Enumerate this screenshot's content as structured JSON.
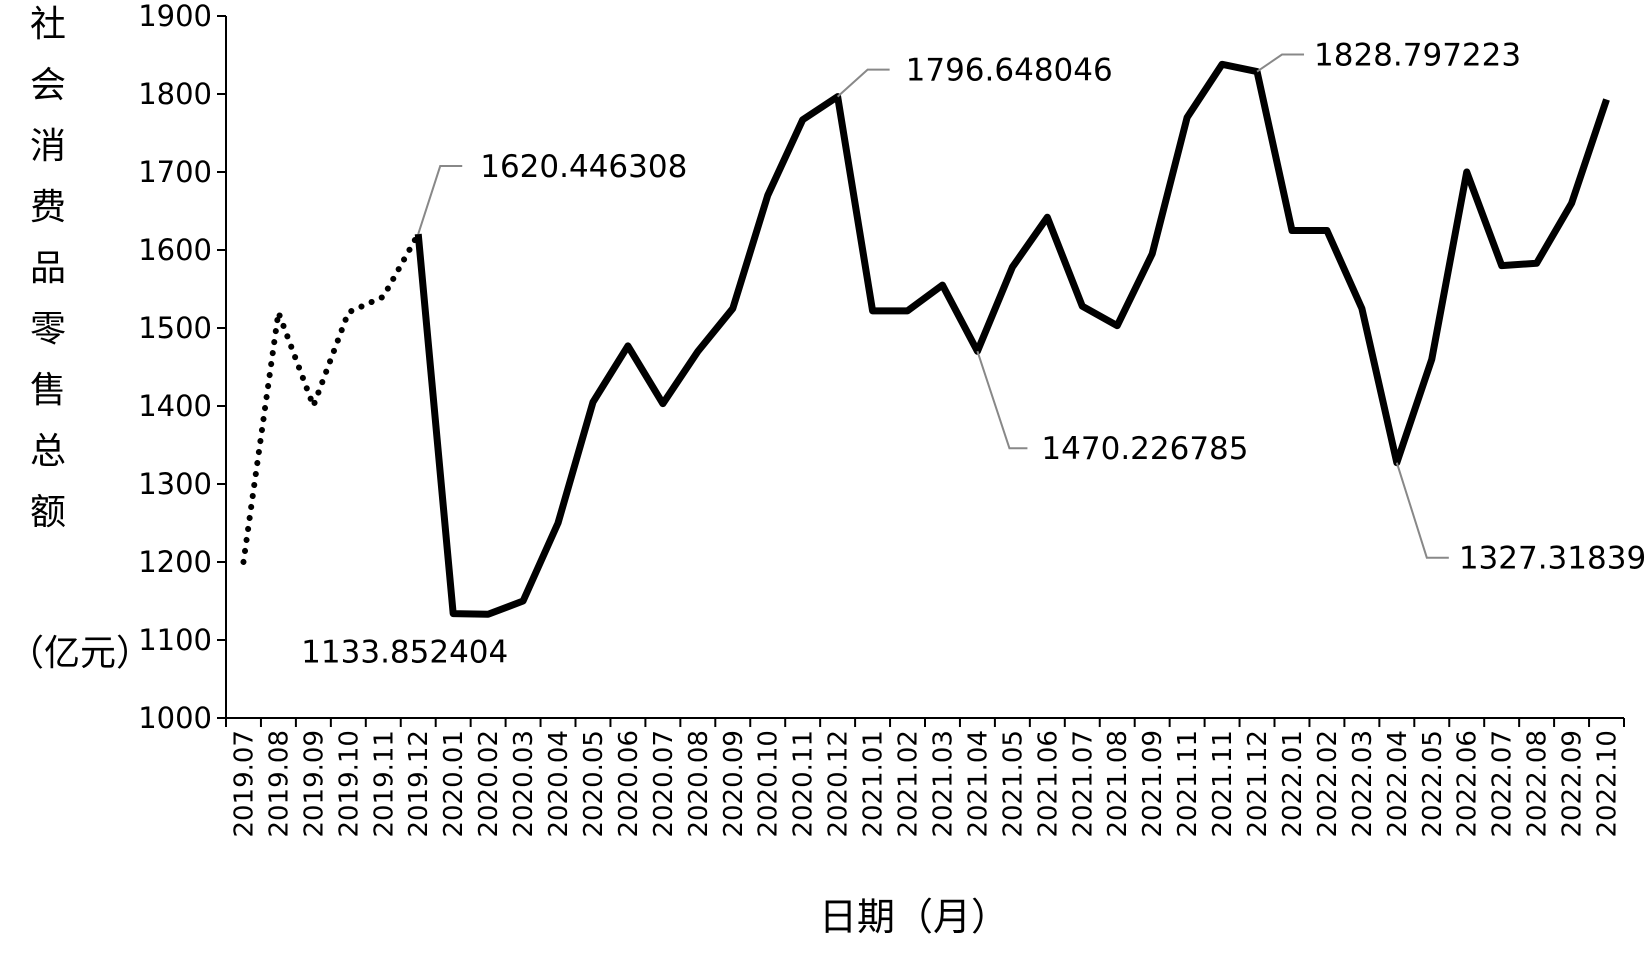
{
  "chart_data": {
    "type": "line",
    "y_label_vertical": "社会消费品零售总额",
    "y_label_unit": "（亿元）",
    "x_label": "日期（月）",
    "categories": [
      "2019.07",
      "2019.08",
      "2019.09",
      "2019.10",
      "2019.11",
      "2019.12",
      "2020.01",
      "2020.02",
      "2020.03",
      "2020.04",
      "2020.05",
      "2020.06",
      "2020.07",
      "2020.08",
      "2020.09",
      "2020.10",
      "2020.11",
      "2020.12",
      "2021.01",
      "2021.02",
      "2021.03",
      "2021.04",
      "2021.05",
      "2021.06",
      "2021.07",
      "2021.08",
      "2021.09",
      "2021.11",
      "2021.11",
      "2021.12",
      "2022.01",
      "2022.02",
      "2022.03",
      "2022.04",
      "2022.05",
      "2022.06",
      "2022.07",
      "2022.08",
      "2022.09",
      "2022.10"
    ],
    "series": [
      {
        "color": "#000000",
        "dash": "dotted",
        "values": [
          1200,
          1520,
          1400,
          1520,
          1540,
          1620.446308,
          null,
          null,
          null,
          null,
          null,
          null,
          null,
          null,
          null,
          null,
          null,
          null,
          null,
          null,
          null,
          null,
          null,
          null,
          null,
          null,
          null,
          null,
          null,
          null,
          null,
          null,
          null,
          null,
          null,
          null,
          null,
          null,
          null,
          null
        ]
      },
      {
        "color": "#000000",
        "dash": "solid",
        "values": [
          null,
          null,
          null,
          null,
          null,
          1620.446308,
          1133.852404,
          1133,
          1150,
          1250,
          1405,
          1477,
          1403,
          1470,
          1525,
          1670,
          1767,
          1796.648046,
          1522,
          1522,
          1555,
          1470.226785,
          1578,
          1642,
          1528,
          1503,
          1595,
          1770,
          1838,
          1828.797223,
          1625,
          1625,
          1525,
          1327.318392,
          1460,
          1700,
          1580,
          1583,
          1660,
          1793
        ]
      }
    ],
    "labeled_points": [
      5,
      6,
      17,
      21,
      29,
      33
    ],
    "ylim": [
      1000,
      1900
    ],
    "yticks": [
      1000,
      1100,
      1200,
      1300,
      1400,
      1500,
      1600,
      1700,
      1800,
      1900
    ],
    "grid": false
  }
}
